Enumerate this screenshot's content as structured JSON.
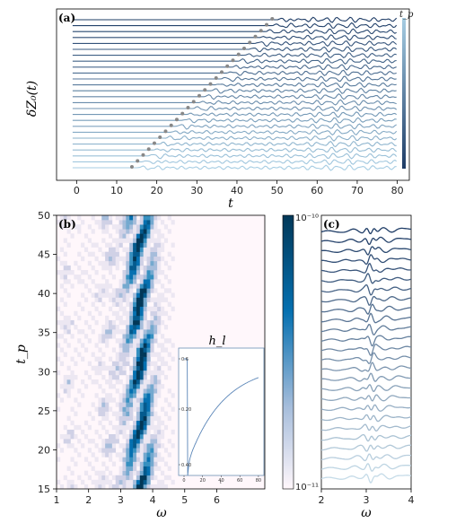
{
  "chart_data": [
    {
      "type": "line",
      "panel_label": "(a)",
      "ylabel": "δZ₀(t)",
      "xlabel": "t",
      "xlim": [
        -5,
        83
      ],
      "xticks": [
        0,
        10,
        20,
        30,
        40,
        50,
        60,
        70,
        80
      ],
      "colorbar_label": "t_p",
      "series_tp_start": 15,
      "series_tp_end": 50,
      "series_count": 26,
      "marker_shown": true,
      "grid": false
    },
    {
      "type": "heatmap",
      "panel_label": "(b)",
      "xlabel": "ω",
      "ylabel": "t_p",
      "xlim": [
        1,
        7.5
      ],
      "ylim": [
        15,
        50
      ],
      "xticks": [
        1,
        2,
        3,
        4,
        5,
        6
      ],
      "yticks": [
        15,
        20,
        25,
        30,
        35,
        40,
        45,
        50
      ],
      "colorbar": {
        "min_label": "10⁻¹¹",
        "max_label": "10⁻¹⁰",
        "scale": "log",
        "cmap": "PuBu"
      },
      "inset": {
        "title": "h_l",
        "xlabel": "t",
        "xticks": [
          0,
          20,
          40,
          60,
          80
        ],
        "yticks": [
          "0.6",
          "0.20",
          "0.40"
        ],
        "type": "line"
      }
    },
    {
      "type": "line",
      "panel_label": "(c)",
      "xlabel": "ω",
      "xlim": [
        2,
        4
      ],
      "xticks": [
        2,
        3,
        4
      ],
      "series_count": 26
    }
  ],
  "labels": {
    "a": "(a)",
    "b": "(b)",
    "c": "(c)",
    "tp": "t_p",
    "t": "t",
    "omega": "ω",
    "omega_c": "ω",
    "yA": "δZ₀(t)",
    "ytp": "t_p",
    "hl": "h_l",
    "cb_max": "10⁻¹⁰",
    "cb_min": "10⁻¹¹",
    "inset_t": "t"
  },
  "ticks": {
    "a_x": [
      "0",
      "10",
      "20",
      "30",
      "40",
      "50",
      "60",
      "70",
      "80"
    ],
    "b_x": [
      "1",
      "2",
      "3",
      "4",
      "5",
      "6"
    ],
    "b_y": [
      "15",
      "20",
      "25",
      "30",
      "35",
      "40",
      "45",
      "50"
    ],
    "c_x": [
      "2",
      "3",
      "4"
    ],
    "inset_x": [
      "0",
      "20",
      "40",
      "60",
      "80"
    ],
    "inset_y": [
      "0.6",
      "0.20",
      "0.40"
    ]
  }
}
